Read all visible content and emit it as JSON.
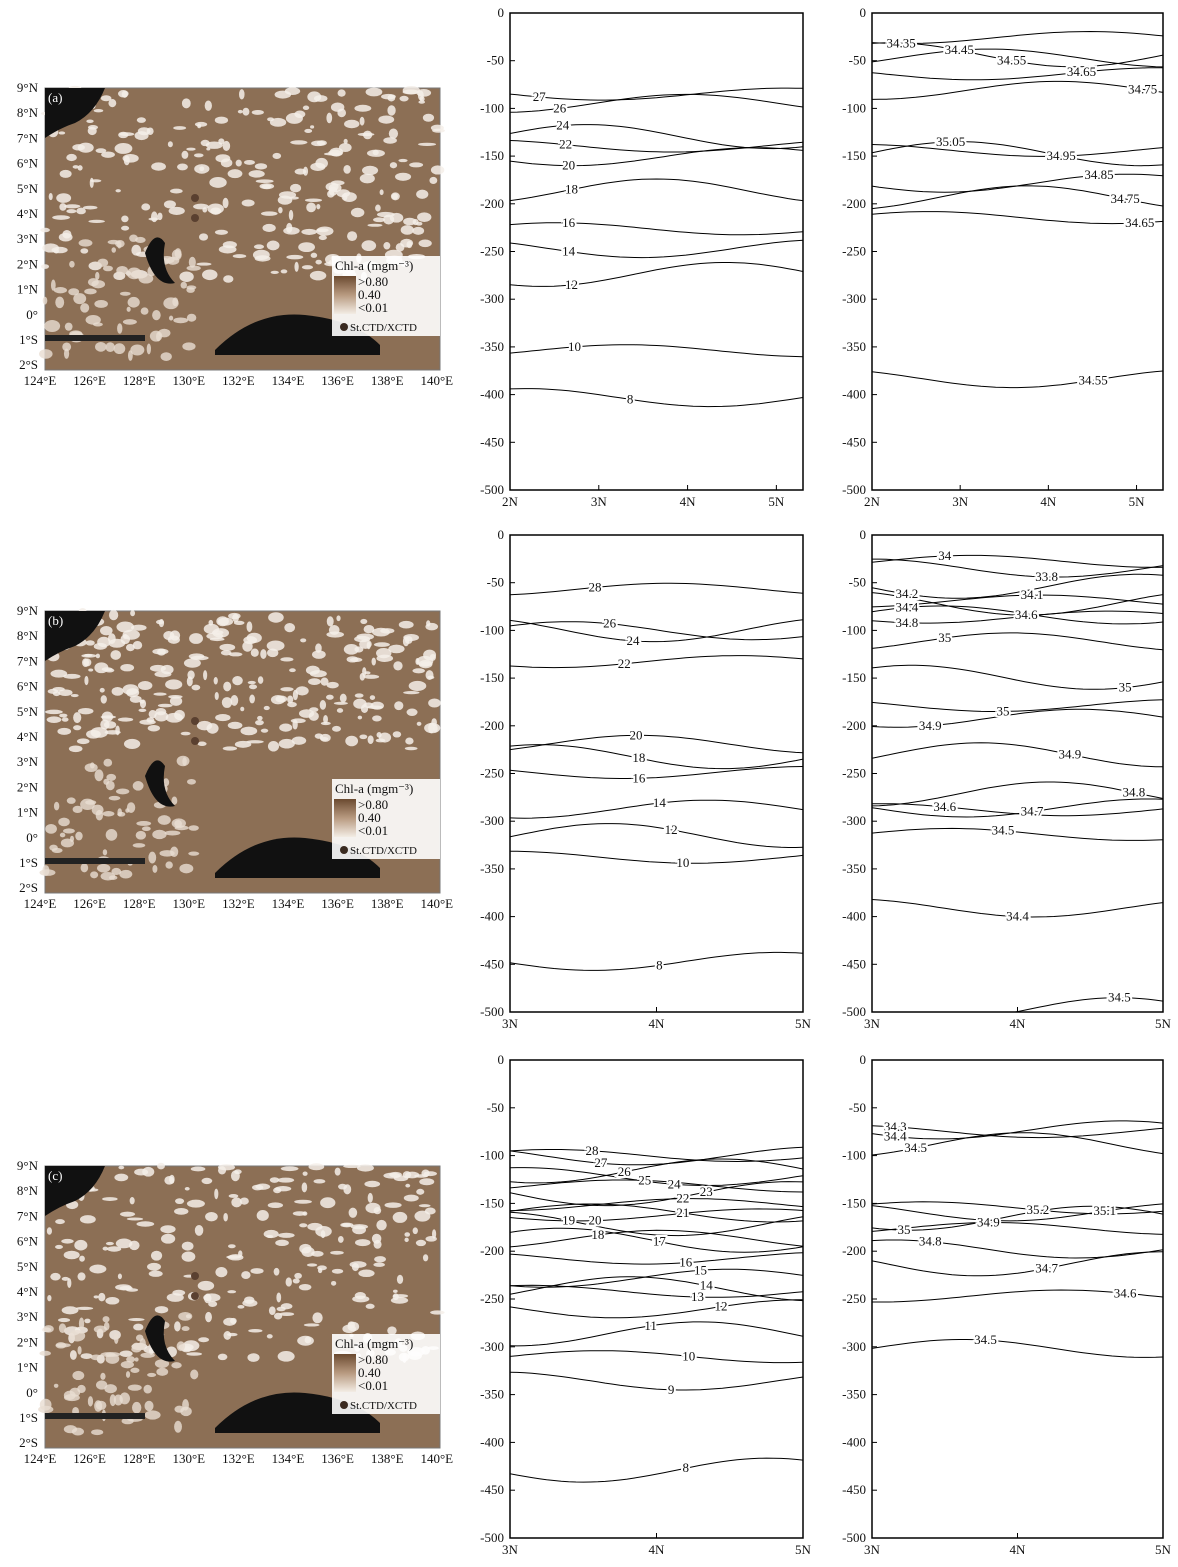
{
  "maps": [
    {
      "label": "(a)",
      "lat_ticks": [
        "9°N",
        "8°N",
        "7°N",
        "6°N",
        "5°N",
        "4°N",
        "3°N",
        "2°N",
        "1°N",
        "0°",
        "1°S",
        "2°S"
      ],
      "lon_ticks": [
        "124°E",
        "126°E",
        "128°E",
        "130°E",
        "132°E",
        "134°E",
        "136°E",
        "138°E",
        "140°E"
      ],
      "legend": {
        "title": "Chl-a (mgm⁻³)",
        "levels": [
          ">0.80",
          "0.40",
          "<0.01"
        ],
        "station": "St.CTD/XCTD"
      }
    },
    {
      "label": "(b)",
      "lat_ticks": [
        "9°N",
        "8°N",
        "7°N",
        "6°N",
        "5°N",
        "4°N",
        "3°N",
        "2°N",
        "1°N",
        "0°",
        "1°S",
        "2°S"
      ],
      "lon_ticks": [
        "124°E",
        "126°E",
        "128°E",
        "130°E",
        "132°E",
        "134°E",
        "136°E",
        "138°E",
        "140°E"
      ],
      "legend": {
        "title": "Chl-a (mgm⁻³)",
        "levels": [
          ">0.80",
          "0.40",
          "<0.01"
        ],
        "station": "St.CTD/XCTD"
      }
    },
    {
      "label": "(c)",
      "lat_ticks": [
        "9°N",
        "8°N",
        "7°N",
        "6°N",
        "5°N",
        "4°N",
        "3°N",
        "2°N",
        "1°N",
        "0°",
        "1°S",
        "2°S"
      ],
      "lon_ticks": [
        "124°E",
        "126°E",
        "128°E",
        "130°E",
        "132°E",
        "134°E",
        "136°E",
        "138°E",
        "140°E"
      ],
      "legend": {
        "title": "Chl-a (mgm⁻³)",
        "levels": [
          ">0.80",
          "0.40",
          "<0.01"
        ],
        "station": "St.CTD/XCTD"
      }
    }
  ],
  "chart_data": [
    {
      "type": "contour",
      "xlim": [
        2,
        5.3
      ],
      "xticks": [
        {
          "value": 2,
          "label": "2N"
        },
        {
          "value": 3,
          "label": "3N"
        },
        {
          "value": 4,
          "label": "4N"
        },
        {
          "value": 5,
          "label": "5N"
        }
      ],
      "ylim": [
        -500,
        0
      ],
      "yticks": [
        0,
        -50,
        -100,
        -150,
        -200,
        -250,
        -300,
        -350,
        -400,
        -450,
        -500
      ],
      "contour_labels": [
        27,
        26,
        24,
        22,
        20,
        18,
        16,
        14,
        12,
        10,
        8
      ]
    },
    {
      "type": "contour",
      "xlim": [
        2,
        5.3
      ],
      "xticks": [
        {
          "value": 2,
          "label": "2N"
        },
        {
          "value": 3,
          "label": "3N"
        },
        {
          "value": 4,
          "label": "4N"
        },
        {
          "value": 5,
          "label": "5N"
        }
      ],
      "ylim": [
        -500,
        0
      ],
      "yticks": [
        0,
        -50,
        -100,
        -150,
        -200,
        -250,
        -300,
        -350,
        -400,
        -450,
        -500
      ],
      "contour_labels": [
        34.35,
        34.45,
        34.55,
        34.65,
        34.75,
        35.05,
        34.95,
        34.85,
        34.75,
        34.65,
        34.55
      ]
    },
    {
      "type": "contour",
      "xlim": [
        3,
        5
      ],
      "xticks": [
        {
          "value": 3,
          "label": "3N"
        },
        {
          "value": 4,
          "label": "4N"
        },
        {
          "value": 5,
          "label": "5N"
        }
      ],
      "ylim": [
        -500,
        0
      ],
      "yticks": [
        0,
        -50,
        -100,
        -150,
        -200,
        -250,
        -300,
        -350,
        -400,
        -450,
        -500
      ],
      "contour_labels": [
        28,
        26,
        24,
        22,
        20,
        18,
        16,
        14,
        12,
        10,
        8
      ]
    },
    {
      "type": "contour",
      "xlim": [
        3,
        5
      ],
      "xticks": [
        {
          "value": 3,
          "label": "3N"
        },
        {
          "value": 4,
          "label": "4N"
        },
        {
          "value": 5,
          "label": "5N"
        }
      ],
      "ylim": [
        -500,
        0
      ],
      "yticks": [
        0,
        -50,
        -100,
        -150,
        -200,
        -250,
        -300,
        -350,
        -400,
        -450,
        -500
      ],
      "contour_labels": [
        34,
        33.8,
        34.2,
        34.1,
        34.4,
        34.6,
        34.8,
        35,
        35,
        35,
        34.9,
        34.9,
        34.6,
        34.7,
        34.8,
        34.5,
        34.4,
        34.5
      ]
    },
    {
      "type": "contour",
      "xlim": [
        3,
        5
      ],
      "xticks": [
        {
          "value": 3,
          "label": "3N"
        },
        {
          "value": 4,
          "label": "4N"
        },
        {
          "value": 5,
          "label": "5N"
        }
      ],
      "ylim": [
        -500,
        0
      ],
      "yticks": [
        0,
        -50,
        -100,
        -150,
        -200,
        -250,
        -300,
        -350,
        -400,
        -450,
        -500
      ],
      "contour_labels": [
        28,
        27,
        26,
        25,
        24,
        23,
        22,
        21,
        19,
        20,
        18,
        17,
        16,
        15,
        14,
        13,
        12,
        11,
        10,
        9,
        8
      ]
    },
    {
      "type": "contour",
      "xlim": [
        3,
        5
      ],
      "xticks": [
        {
          "value": 3,
          "label": "3N"
        },
        {
          "value": 4,
          "label": "4N"
        },
        {
          "value": 5,
          "label": "5N"
        }
      ],
      "ylim": [
        -500,
        0
      ],
      "yticks": [
        0,
        -50,
        -100,
        -150,
        -200,
        -250,
        -300,
        -350,
        -400,
        -450,
        -500
      ],
      "contour_labels": [
        34.3,
        34.4,
        34.5,
        35.2,
        35.1,
        35,
        34.9,
        34.8,
        34.7,
        34.6,
        34.5
      ]
    }
  ]
}
